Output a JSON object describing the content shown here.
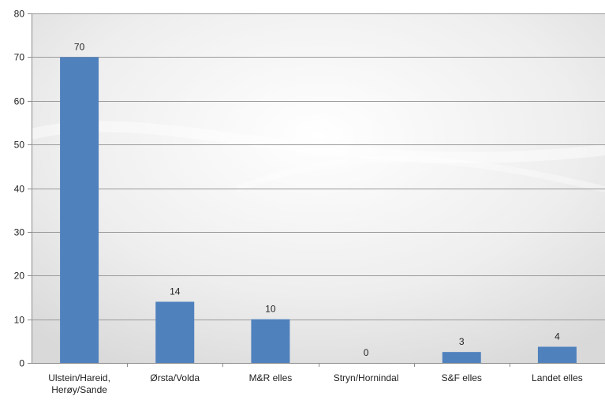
{
  "chart_data": {
    "type": "bar",
    "categories": [
      [
        "Ulstein/Hareid,",
        "Herøy/Sande"
      ],
      [
        "Ørsta/Volda"
      ],
      [
        "M&R elles"
      ],
      [
        "Stryn/Hornindal"
      ],
      [
        "S&F elles"
      ],
      [
        "Landet elles"
      ]
    ],
    "values": [
      70,
      14,
      10,
      0,
      2.5,
      3.7
    ],
    "data_labels": [
      "70",
      "14",
      "10",
      "0",
      "3",
      "4"
    ],
    "ylim": [
      0,
      80
    ],
    "yticks": [
      0,
      10,
      20,
      30,
      40,
      50,
      60,
      70,
      80
    ],
    "grid": true,
    "bar_color": "#4f81bd",
    "title": "",
    "xlabel": "",
    "ylabel": ""
  }
}
